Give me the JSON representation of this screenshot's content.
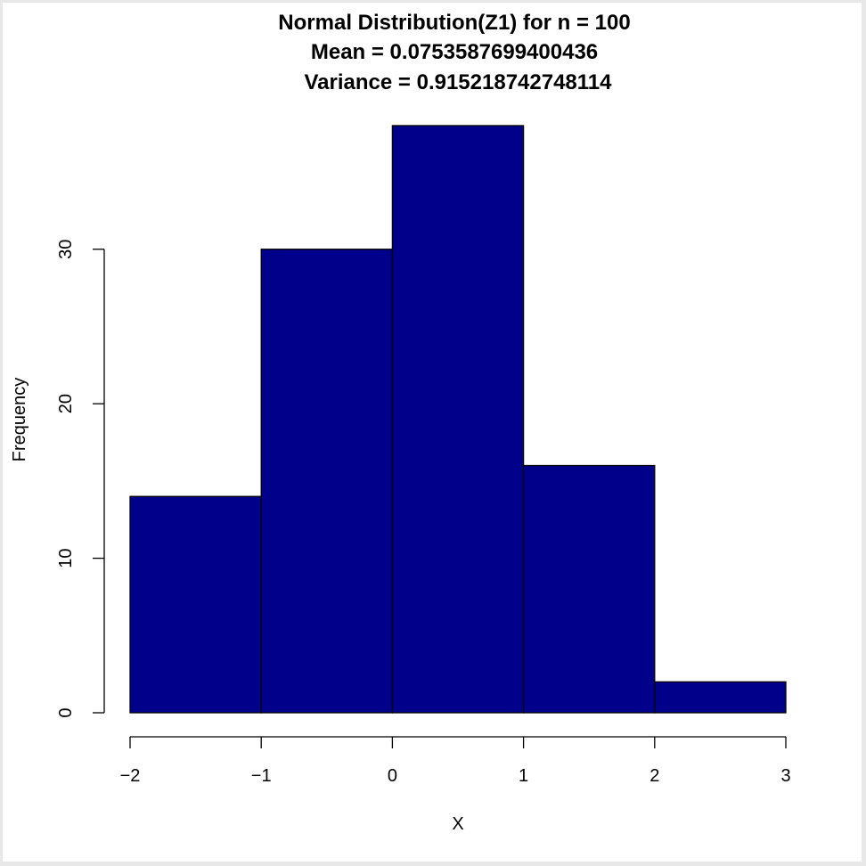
{
  "chart_data": {
    "type": "bar",
    "title_lines": [
      "Normal Distribution(Z1) for n =  100",
      "Mean =  0.0753587699400436",
      "Variance =  0.915218742748114"
    ],
    "xlabel": "X",
    "ylabel": "Frequency",
    "bins": [
      {
        "from": -2,
        "to": -1,
        "value": 14
      },
      {
        "from": -1,
        "to": 0,
        "value": 30
      },
      {
        "from": 0,
        "to": 1,
        "value": 38
      },
      {
        "from": 1,
        "to": 2,
        "value": 16
      },
      {
        "from": 2,
        "to": 3,
        "value": 2
      }
    ],
    "x_ticks": [
      -2,
      -1,
      0,
      1,
      2,
      3
    ],
    "x_tick_labels": [
      "−2",
      "−1",
      "0",
      "1",
      "2",
      "3"
    ],
    "y_ticks": [
      0,
      10,
      20,
      30
    ],
    "y_tick_labels": [
      "0",
      "10",
      "20",
      "30"
    ],
    "xlim": [
      -2,
      3
    ],
    "ylim": [
      0,
      38
    ],
    "grid": false,
    "legend": "none",
    "bar_color": "#00008B",
    "edge_color": "#000000"
  }
}
